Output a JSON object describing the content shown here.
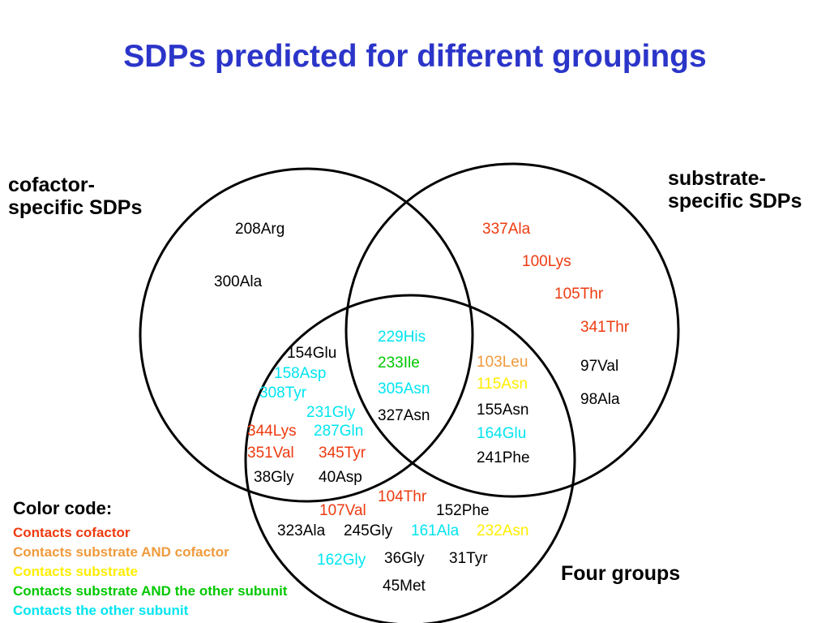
{
  "title": "SDPs predicted for different groupings",
  "groups": {
    "cofactor": {
      "line1": "cofactor-",
      "line2": "specific SDPs"
    },
    "substrate": {
      "line1": "substrate-",
      "line2": "specific SDPs"
    },
    "four": "Four groups"
  },
  "colors": {
    "title": "#2b35c9",
    "cofactor": "#ee3a10",
    "both": "#f09a3c",
    "substrate": "#ffee00",
    "subunit_substrate": "#00c800",
    "subunit": "#00e5f0",
    "plain": "#000000"
  },
  "legend": {
    "title": "Color code:",
    "items": [
      {
        "label": "Contacts cofactor",
        "color": "cofactor"
      },
      {
        "label": "Contacts substrate AND cofactor",
        "color": "both"
      },
      {
        "label": "Contacts substrate",
        "color": "substrate"
      },
      {
        "label": "Contacts substrate AND the other subunit",
        "color": "subunit_substrate"
      },
      {
        "label": "Contacts the other subunit",
        "color": "subunit"
      }
    ]
  },
  "sdps": {
    "cofactor_only": [
      {
        "label": "208Arg",
        "color": "plain"
      },
      {
        "label": "300Ala",
        "color": "plain"
      }
    ],
    "substrate_only": [
      {
        "label": "337Ala",
        "color": "cofactor"
      },
      {
        "label": "100Lys",
        "color": "cofactor"
      },
      {
        "label": "105Thr",
        "color": "cofactor"
      },
      {
        "label": "341Thr",
        "color": "cofactor"
      },
      {
        "label": "97Val",
        "color": "plain"
      },
      {
        "label": "98Ala",
        "color": "plain"
      }
    ],
    "all_three": [
      {
        "label": "229His",
        "color": "subunit"
      },
      {
        "label": "233Ile",
        "color": "subunit_substrate"
      },
      {
        "label": "305Asn",
        "color": "subunit"
      },
      {
        "label": "327Asn",
        "color": "plain"
      }
    ],
    "cofactor_four": [
      {
        "label": "154Glu",
        "color": "plain"
      },
      {
        "label": "158Asp",
        "color": "subunit"
      },
      {
        "label": "308Tyr",
        "color": "subunit"
      },
      {
        "label": "231Gly",
        "color": "subunit"
      },
      {
        "label": "344Lys",
        "color": "cofactor"
      },
      {
        "label": "287Gln",
        "color": "subunit"
      },
      {
        "label": "351Val",
        "color": "cofactor"
      },
      {
        "label": "345Tyr",
        "color": "cofactor"
      },
      {
        "label": "38Gly",
        "color": "plain"
      },
      {
        "label": "40Asp",
        "color": "plain"
      }
    ],
    "substrate_four": [
      {
        "label": "103Leu",
        "color": "both"
      },
      {
        "label": "115Asn",
        "color": "substrate"
      },
      {
        "label": "155Asn",
        "color": "plain"
      },
      {
        "label": "164Glu",
        "color": "subunit"
      },
      {
        "label": "241Phe",
        "color": "plain"
      }
    ],
    "four_only": [
      {
        "label": "104Thr",
        "color": "cofactor"
      },
      {
        "label": "107Val",
        "color": "cofactor"
      },
      {
        "label": "152Phe",
        "color": "plain"
      },
      {
        "label": "323Ala",
        "color": "plain"
      },
      {
        "label": "245Gly",
        "color": "plain"
      },
      {
        "label": "161Ala",
        "color": "subunit"
      },
      {
        "label": "232Asn",
        "color": "substrate"
      },
      {
        "label": "162Gly",
        "color": "subunit"
      },
      {
        "label": "36Gly",
        "color": "plain"
      },
      {
        "label": "31Tyr",
        "color": "plain"
      },
      {
        "label": "45Met",
        "color": "plain"
      }
    ]
  }
}
